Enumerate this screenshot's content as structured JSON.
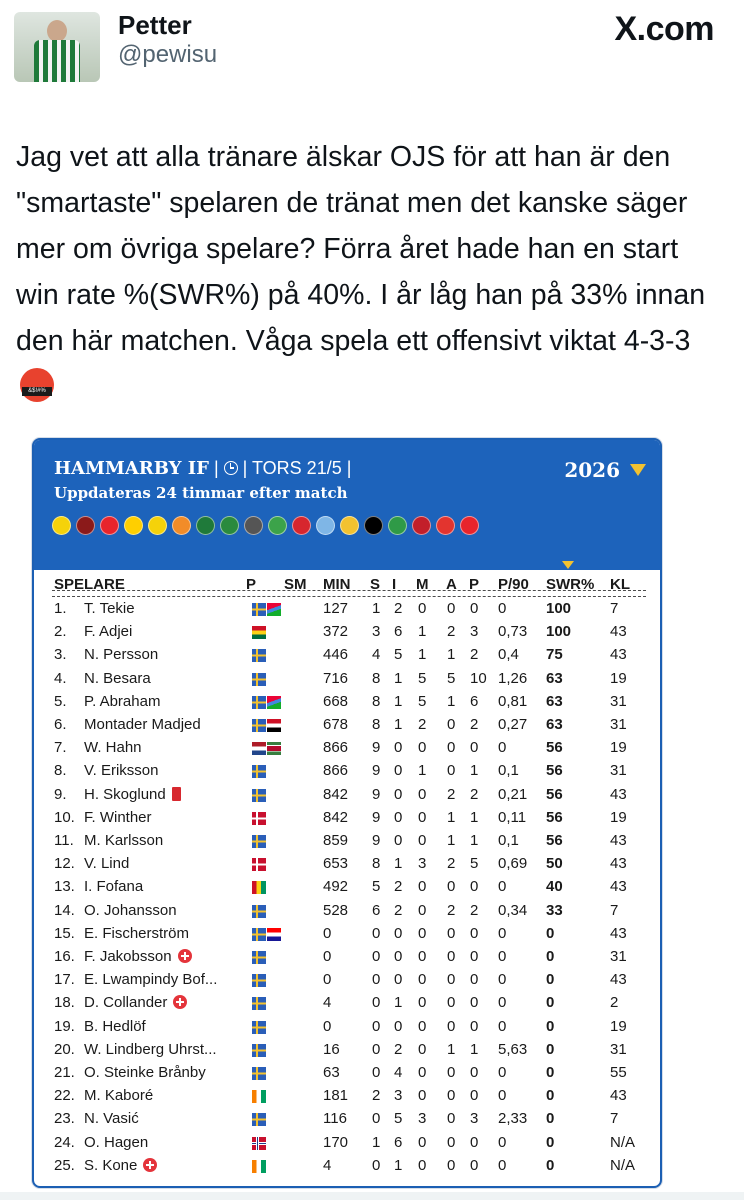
{
  "user": {
    "name": "Petter",
    "handle": "@pewisu"
  },
  "brand": "X.com",
  "tweet_text": "Jag vet att alla tränare älskar OJS för att han är den \"smartaste\" spelaren de tränat men det kanske säger mer om övriga spelare? Förra året hade han en start win rate %(SWR%) på 40%. I år låg han på 33% innan den här matchen. Våga spela ett offensivt viktat 4-3-3",
  "emoji_text": "&$!#%",
  "card": {
    "team": "HAMMARBY IF",
    "sep1": " | ",
    "sep2": " | TORS 21/5 |",
    "subtitle": "Uppdateras 24 timmar efter match",
    "year": "2026",
    "badge_colors": [
      "#f5d20a",
      "#8b1a1a",
      "#e8242c",
      "#ffcf00",
      "#f5d20a",
      "#f28c28",
      "#1f7a3a",
      "#2a8a3e",
      "#555555",
      "#3ca34a",
      "#d7262e",
      "#7fb6e6",
      "#f2c230",
      "#000000",
      "#2f9a47",
      "#c21f2a",
      "#e3342f",
      "#e8242c"
    ],
    "headers": {
      "player": "SPELARE",
      "p": "P",
      "sm": "SM",
      "min": "MIN",
      "s": "S",
      "i": "I",
      "m": "M",
      "a": "A",
      "pp": "P",
      "p90": "P/90",
      "swr": "SWR%",
      "kl": "KL"
    },
    "rows": [
      {
        "n": "1.",
        "name": "T. Tekie",
        "flags": [
          "se",
          "er"
        ],
        "mark": "",
        "min": "127",
        "s": "1",
        "i": "2",
        "m": "0",
        "a": "0",
        "p": "0",
        "p90": "0",
        "swr": "100",
        "kl": "7"
      },
      {
        "n": "2.",
        "name": "F. Adjei",
        "flags": [
          "gh"
        ],
        "mark": "",
        "min": "372",
        "s": "3",
        "i": "6",
        "m": "1",
        "a": "2",
        "p": "3",
        "p90": "0,73",
        "swr": "100",
        "kl": "43"
      },
      {
        "n": "3.",
        "name": "N. Persson",
        "flags": [
          "se"
        ],
        "mark": "",
        "min": "446",
        "s": "4",
        "i": "5",
        "m": "1",
        "a": "1",
        "p": "2",
        "p90": "0,4",
        "swr": "75",
        "kl": "43"
      },
      {
        "n": "4.",
        "name": "N. Besara",
        "flags": [
          "se"
        ],
        "mark": "",
        "min": "716",
        "s": "8",
        "i": "1",
        "m": "5",
        "a": "5",
        "p": "10",
        "p90": "1,26",
        "swr": "63",
        "kl": "19"
      },
      {
        "n": "5.",
        "name": "P. Abraham",
        "flags": [
          "se",
          "er"
        ],
        "mark": "",
        "min": "668",
        "s": "8",
        "i": "1",
        "m": "5",
        "a": "1",
        "p": "6",
        "p90": "0,81",
        "swr": "63",
        "kl": "31"
      },
      {
        "n": "6.",
        "name": "Montader Madjed",
        "flags": [
          "se",
          "ye"
        ],
        "mark": "",
        "min": "678",
        "s": "8",
        "i": "1",
        "m": "2",
        "a": "0",
        "p": "2",
        "p90": "0,27",
        "swr": "63",
        "kl": "31"
      },
      {
        "n": "7.",
        "name": "W. Hahn",
        "flags": [
          "nl",
          "sr"
        ],
        "mark": "",
        "min": "866",
        "s": "9",
        "i": "0",
        "m": "0",
        "a": "0",
        "p": "0",
        "p90": "0",
        "swr": "56",
        "kl": "19"
      },
      {
        "n": "8.",
        "name": "V. Eriksson",
        "flags": [
          "se"
        ],
        "mark": "",
        "min": "866",
        "s": "9",
        "i": "0",
        "m": "1",
        "a": "0",
        "p": "1",
        "p90": "0,1",
        "swr": "56",
        "kl": "31"
      },
      {
        "n": "9.",
        "name": "H. Skoglund",
        "flags": [
          "se"
        ],
        "mark": "red",
        "min": "842",
        "s": "9",
        "i": "0",
        "m": "0",
        "a": "2",
        "p": "2",
        "p90": "0,21",
        "swr": "56",
        "kl": "43"
      },
      {
        "n": "10.",
        "name": "F. Winther",
        "flags": [
          "dk"
        ],
        "mark": "",
        "min": "842",
        "s": "9",
        "i": "0",
        "m": "0",
        "a": "1",
        "p": "1",
        "p90": "0,11",
        "swr": "56",
        "kl": "19"
      },
      {
        "n": "11.",
        "name": "M. Karlsson",
        "flags": [
          "se"
        ],
        "mark": "",
        "min": "859",
        "s": "9",
        "i": "0",
        "m": "0",
        "a": "1",
        "p": "1",
        "p90": "0,1",
        "swr": "56",
        "kl": "43"
      },
      {
        "n": "12.",
        "name": "V. Lind",
        "flags": [
          "dk"
        ],
        "mark": "",
        "min": "653",
        "s": "8",
        "i": "1",
        "m": "3",
        "a": "2",
        "p": "5",
        "p90": "0,69",
        "swr": "50",
        "kl": "43"
      },
      {
        "n": "13.",
        "name": "I. Fofana",
        "flags": [
          "gn"
        ],
        "mark": "",
        "min": "492",
        "s": "5",
        "i": "2",
        "m": "0",
        "a": "0",
        "p": "0",
        "p90": "0",
        "swr": "40",
        "kl": "43"
      },
      {
        "n": "14.",
        "name": "O. Johansson",
        "flags": [
          "se"
        ],
        "mark": "",
        "min": "528",
        "s": "6",
        "i": "2",
        "m": "0",
        "a": "2",
        "p": "2",
        "p90": "0,34",
        "swr": "33",
        "kl": "7"
      },
      {
        "n": "15.",
        "name": "E. Fischerström",
        "flags": [
          "se",
          "hr"
        ],
        "mark": "",
        "min": "0",
        "s": "0",
        "i": "0",
        "m": "0",
        "a": "0",
        "p": "0",
        "p90": "0",
        "swr": "0",
        "kl": "43"
      },
      {
        "n": "16.",
        "name": "F. Jakobsson",
        "flags": [
          "se"
        ],
        "mark": "inj",
        "min": "0",
        "s": "0",
        "i": "0",
        "m": "0",
        "a": "0",
        "p": "0",
        "p90": "0",
        "swr": "0",
        "kl": "31"
      },
      {
        "n": "17.",
        "name": "E. Lwampindy Bof...",
        "flags": [
          "se"
        ],
        "mark": "",
        "min": "0",
        "s": "0",
        "i": "0",
        "m": "0",
        "a": "0",
        "p": "0",
        "p90": "0",
        "swr": "0",
        "kl": "43"
      },
      {
        "n": "18.",
        "name": "D. Collander",
        "flags": [
          "se"
        ],
        "mark": "inj",
        "min": "4",
        "s": "0",
        "i": "1",
        "m": "0",
        "a": "0",
        "p": "0",
        "p90": "0",
        "swr": "0",
        "kl": "2"
      },
      {
        "n": "19.",
        "name": "B. Hedlöf",
        "flags": [
          "se"
        ],
        "mark": "",
        "min": "0",
        "s": "0",
        "i": "0",
        "m": "0",
        "a": "0",
        "p": "0",
        "p90": "0",
        "swr": "0",
        "kl": "19"
      },
      {
        "n": "20.",
        "name": "W. Lindberg Uhrst...",
        "flags": [
          "se"
        ],
        "mark": "",
        "min": "16",
        "s": "0",
        "i": "2",
        "m": "0",
        "a": "1",
        "p": "1",
        "p90": "5,63",
        "swr": "0",
        "kl": "31"
      },
      {
        "n": "21.",
        "name": "O. Steinke Brånby",
        "flags": [
          "se"
        ],
        "mark": "",
        "min": "63",
        "s": "0",
        "i": "4",
        "m": "0",
        "a": "0",
        "p": "0",
        "p90": "0",
        "swr": "0",
        "kl": "55"
      },
      {
        "n": "22.",
        "name": "M. Kaboré",
        "flags": [
          "ci"
        ],
        "mark": "",
        "min": "181",
        "s": "2",
        "i": "3",
        "m": "0",
        "a": "0",
        "p": "0",
        "p90": "0",
        "swr": "0",
        "kl": "43"
      },
      {
        "n": "23.",
        "name": "N. Vasić",
        "flags": [
          "se"
        ],
        "mark": "",
        "min": "116",
        "s": "0",
        "i": "5",
        "m": "3",
        "a": "0",
        "p": "3",
        "p90": "2,33",
        "swr": "0",
        "kl": "7"
      },
      {
        "n": "24.",
        "name": "O. Hagen",
        "flags": [
          "no"
        ],
        "mark": "",
        "min": "170",
        "s": "1",
        "i": "6",
        "m": "0",
        "a": "0",
        "p": "0",
        "p90": "0",
        "swr": "0",
        "kl": "N/A"
      },
      {
        "n": "25.",
        "name": "S. Kone",
        "flags": [
          "ci"
        ],
        "mark": "inj",
        "min": "4",
        "s": "0",
        "i": "1",
        "m": "0",
        "a": "0",
        "p": "0",
        "p90": "0",
        "swr": "0",
        "kl": "N/A"
      }
    ]
  }
}
